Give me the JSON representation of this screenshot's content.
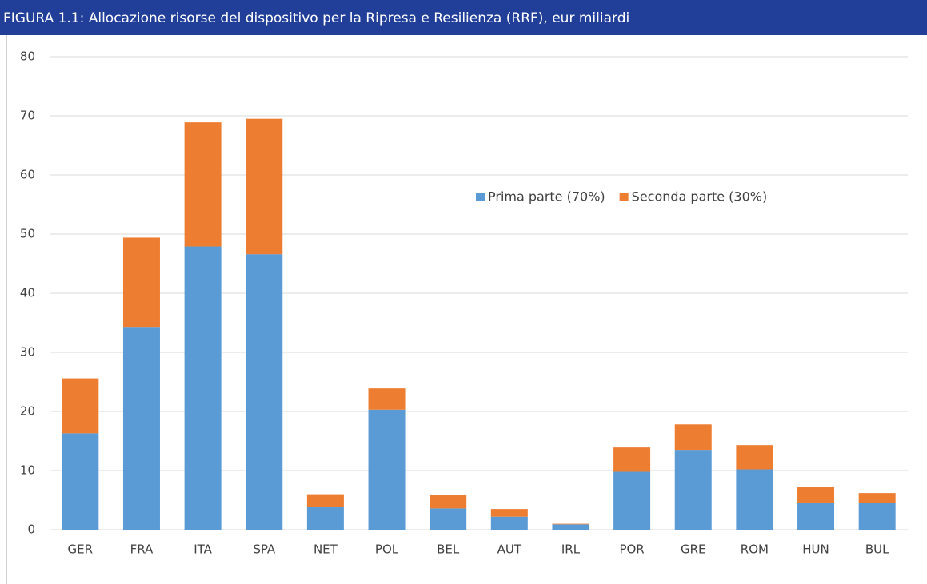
{
  "chart_data": {
    "type": "stacked_bar",
    "title": "FIGURA 1.1: Allocazione risorse del dispositivo per la Ripresa e Resilienza (RRF), eur miliardi",
    "categories": [
      "GER",
      "FRA",
      "ITA",
      "SPA",
      "NET",
      "POL",
      "BEL",
      "AUT",
      "IRL",
      "POR",
      "GRE",
      "ROM",
      "HUN",
      "BUL"
    ],
    "series": [
      {
        "name": "Prima parte (70%)",
        "color": "#5b9bd5",
        "values": [
          16.3,
          34.3,
          47.9,
          46.6,
          3.9,
          20.3,
          3.6,
          2.2,
          0.9,
          9.8,
          13.5,
          10.2,
          4.6,
          4.5
        ]
      },
      {
        "name": "Seconda parte (30%)",
        "color": "#ed7d31",
        "values": [
          9.3,
          15.1,
          21.0,
          22.9,
          2.1,
          3.6,
          2.3,
          1.3,
          0.1,
          4.1,
          4.3,
          4.1,
          2.6,
          1.7
        ]
      }
    ],
    "ylim": [
      0,
      80
    ],
    "yticks": [
      0,
      10,
      20,
      30,
      40,
      50,
      60,
      70,
      80
    ],
    "grid": true
  }
}
